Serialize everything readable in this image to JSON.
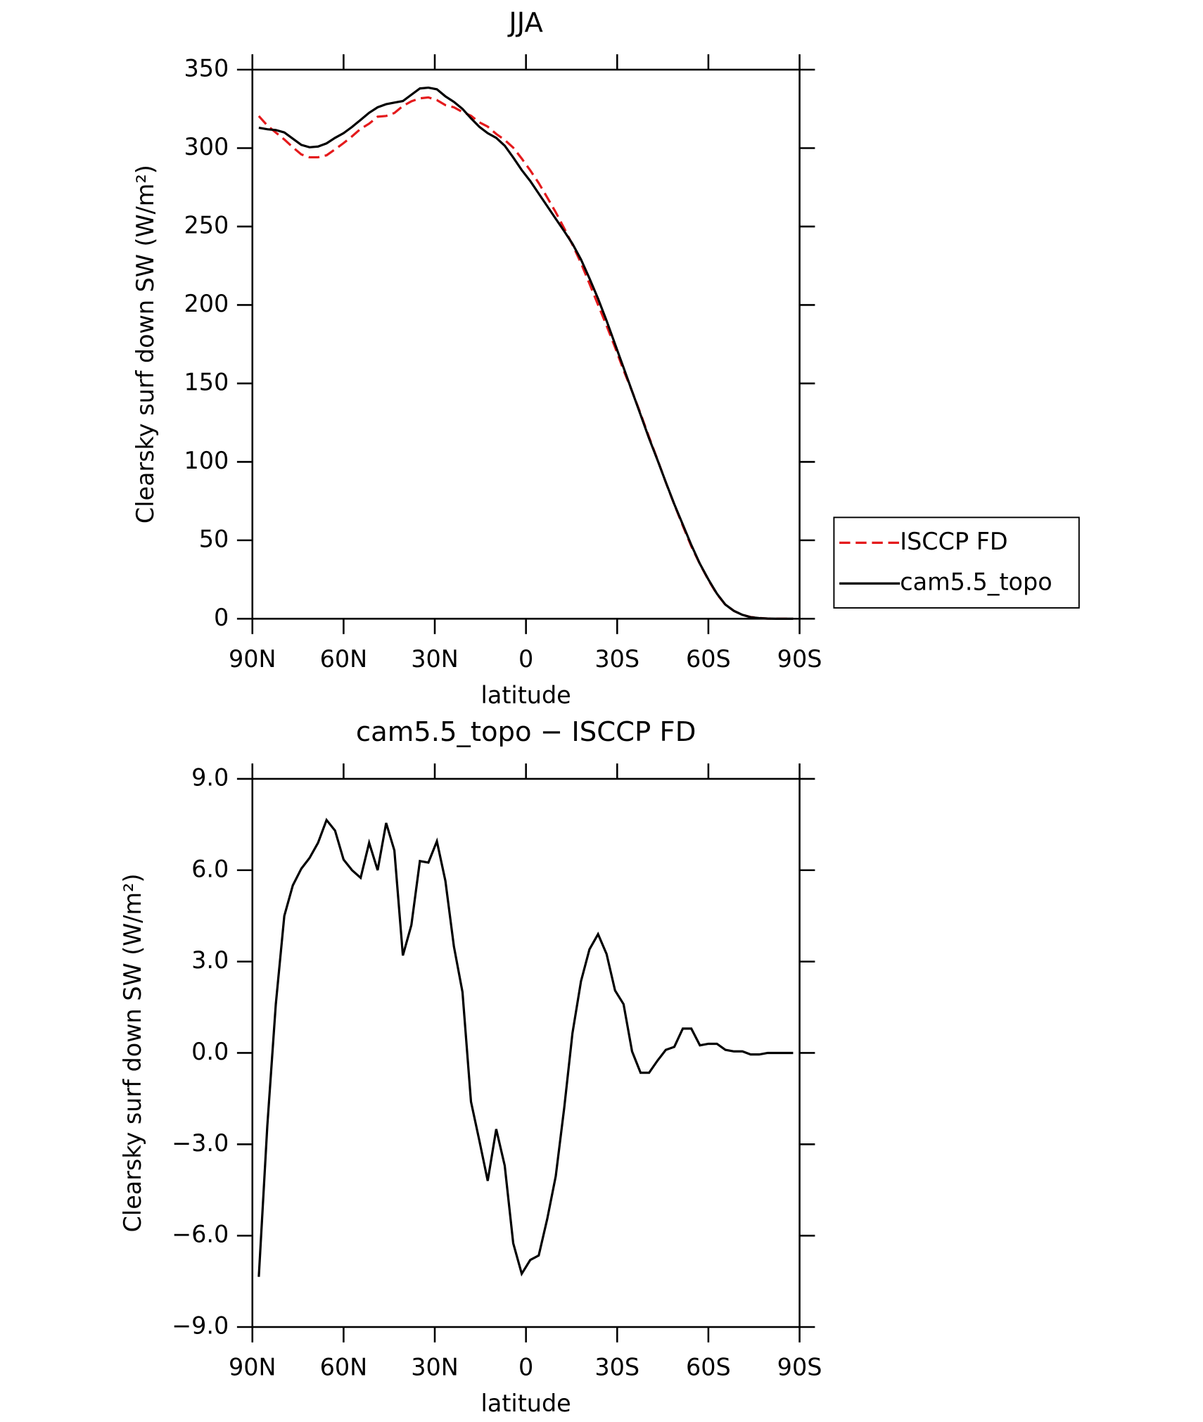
{
  "chart_data": [
    {
      "type": "line",
      "title": "JJA",
      "ylabel": "Clearsky surf down SW (W/m²)",
      "xlabel": "latitude",
      "x": [
        87.9,
        85.1,
        82.3,
        79.5,
        76.7,
        73.9,
        71.2,
        68.4,
        65.6,
        62.8,
        60.0,
        57.2,
        54.4,
        51.6,
        48.8,
        46.0,
        43.3,
        40.5,
        37.7,
        34.9,
        32.1,
        29.3,
        26.5,
        23.7,
        20.9,
        18.1,
        15.3,
        12.6,
        9.8,
        7.0,
        4.2,
        1.4,
        -1.4,
        -4.2,
        -7.0,
        -9.8,
        -12.6,
        -15.3,
        -18.1,
        -20.9,
        -23.7,
        -26.5,
        -29.3,
        -32.1,
        -34.9,
        -37.7,
        -40.5,
        -43.3,
        -46.0,
        -48.8,
        -51.6,
        -54.4,
        -57.2,
        -60.0,
        -62.8,
        -65.6,
        -68.4,
        -71.2,
        -73.9,
        -76.7,
        -79.5,
        -82.3,
        -85.1,
        -87.9
      ],
      "series": [
        {
          "name": "ISCCP FD",
          "color": "#e41a1c",
          "dash": true,
          "values": [
            320.4,
            314.4,
            309.9,
            305.5,
            300.5,
            296.0,
            294.1,
            294.1,
            295.4,
            299.2,
            303.2,
            307.5,
            312.3,
            315.6,
            320.0,
            320.5,
            322.4,
            326.8,
            329.8,
            331.7,
            332.3,
            330.6,
            327.4,
            326.0,
            323.0,
            320.6,
            316.4,
            313.7,
            309.0,
            305.2,
            300.3,
            293.3,
            285.8,
            277.7,
            268.5,
            259.1,
            248.8,
            238.4,
            226.7,
            213.6,
            200.1,
            186.8,
            173.0,
            158.4,
            145.0,
            130.7,
            115.7,
            101.3,
            86.9,
            72.8,
            59.2,
            46.2,
            34.8,
            24.7,
            15.7,
            8.9,
            5.0,
            2.5,
            1.1,
            0.5,
            0.1,
            0,
            0,
            0
          ]
        },
        {
          "name": "cam5.5_topo",
          "color": "#000000",
          "dash": false,
          "values": [
            313,
            312,
            311.5,
            310,
            306,
            302,
            300.5,
            301,
            303,
            306.5,
            309.5,
            313.5,
            318,
            322.5,
            326,
            328,
            329,
            330,
            334,
            338,
            338.5,
            337.5,
            333,
            329.5,
            325,
            319,
            313.5,
            309.5,
            306.5,
            301.5,
            294,
            286,
            279,
            271,
            263,
            255,
            247,
            239,
            229,
            217,
            204,
            190,
            175,
            160,
            145,
            130,
            115,
            101,
            87,
            73,
            60,
            47,
            35,
            25,
            16,
            9,
            5,
            2.5,
            1,
            0.4,
            0.1,
            0,
            0,
            0
          ]
        }
      ],
      "xlim": [
        90,
        -90
      ],
      "xticks": [
        {
          "value": 90,
          "label": "90N"
        },
        {
          "value": 60,
          "label": "60N"
        },
        {
          "value": 30,
          "label": "30N"
        },
        0,
        {
          "value": -30,
          "label": "30S"
        },
        {
          "value": -60,
          "label": "60S"
        },
        {
          "value": -90,
          "label": "90S"
        }
      ],
      "ylim": [
        0,
        350
      ],
      "yticks": [
        0,
        50,
        100,
        150,
        200,
        250,
        300,
        350
      ],
      "legend": "right"
    },
    {
      "type": "line",
      "title": "cam5.5_topo − ISCCP FD",
      "ylabel": "Clearsky surf down SW (W/m²)",
      "xlabel": "latitude",
      "x": [
        87.9,
        85.1,
        82.3,
        79.5,
        76.7,
        73.9,
        71.2,
        68.4,
        65.6,
        62.8,
        60.0,
        57.2,
        54.4,
        51.6,
        48.8,
        46.0,
        43.3,
        40.5,
        37.7,
        34.9,
        32.1,
        29.3,
        26.5,
        23.7,
        20.9,
        18.1,
        15.3,
        12.6,
        9.8,
        7.0,
        4.2,
        1.4,
        -1.4,
        -4.2,
        -7.0,
        -9.8,
        -12.6,
        -15.3,
        -18.1,
        -20.9,
        -23.7,
        -26.5,
        -29.3,
        -32.1,
        -34.9,
        -37.7,
        -40.5,
        -43.3,
        -46.0,
        -48.8,
        -51.6,
        -54.4,
        -57.2,
        -60.0,
        -62.8,
        -65.6,
        -68.4,
        -71.2,
        -73.9,
        -76.7,
        -79.5,
        -82.3,
        -85.1,
        -87.9
      ],
      "series": [
        {
          "color": "#000000",
          "dash": false,
          "values": [
            -7.35,
            -2.4,
            1.6,
            4.5,
            5.5,
            6.05,
            6.4,
            6.9,
            7.65,
            7.3,
            6.35,
            6.0,
            5.75,
            6.9,
            6.0,
            7.55,
            6.65,
            3.2,
            4.2,
            6.3,
            6.25,
            6.95,
            5.65,
            3.5,
            2.0,
            -1.6,
            -2.9,
            -4.2,
            -2.5,
            -3.7,
            -6.25,
            -7.25,
            -6.8,
            -6.65,
            -5.45,
            -4.05,
            -1.8,
            0.65,
            2.35,
            3.4,
            3.9,
            3.25,
            2.05,
            1.6,
            0.05,
            -0.65,
            -0.65,
            -0.25,
            0.1,
            0.2,
            0.8,
            0.8,
            0.25,
            0.3,
            0.3,
            0.1,
            0.05,
            0.05,
            -0.05,
            -0.05,
            0,
            0,
            0,
            0
          ]
        }
      ],
      "xlim": [
        90,
        -90
      ],
      "xticks": [
        {
          "value": 90,
          "label": "90N"
        },
        {
          "value": 60,
          "label": "60N"
        },
        {
          "value": 30,
          "label": "30N"
        },
        0,
        {
          "value": -30,
          "label": "30S"
        },
        {
          "value": -60,
          "label": "60S"
        },
        {
          "value": -90,
          "label": "90S"
        }
      ],
      "ylim": [
        -9,
        9
      ],
      "yticks": [
        {
          "value": -9,
          "label": "−9.0"
        },
        {
          "value": -6,
          "label": "−6.0"
        },
        {
          "value": -3,
          "label": "−3.0"
        },
        {
          "value": 0,
          "label": "0.0"
        },
        {
          "value": 3,
          "label": "3.0"
        },
        {
          "value": 6,
          "label": "6.0"
        },
        {
          "value": 9,
          "label": "9.0"
        }
      ]
    }
  ]
}
